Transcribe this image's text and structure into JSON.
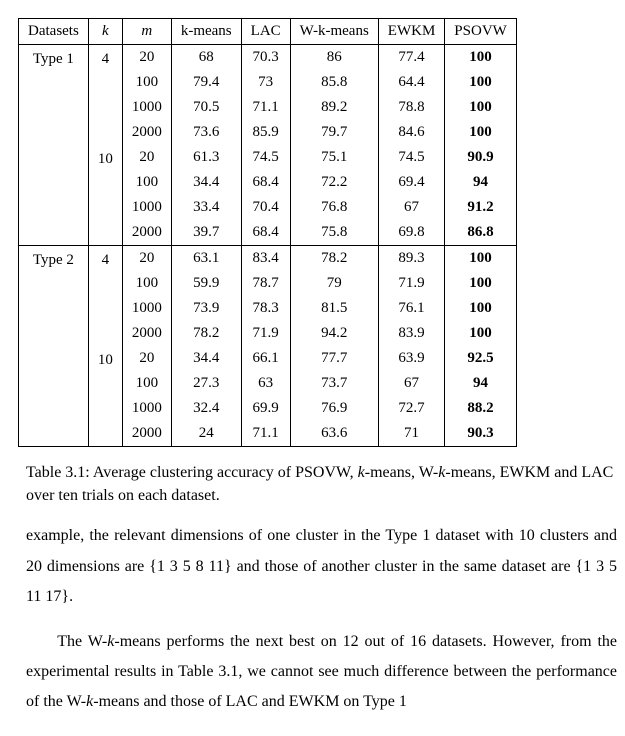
{
  "table": {
    "headers": [
      "Datasets",
      "k",
      "m",
      "k-means",
      "LAC",
      "W-k-means",
      "EWKM",
      "PSOVW"
    ],
    "groups": [
      {
        "dataset": "Type 1",
        "k_blocks": [
          {
            "k": 4,
            "rows": [
              {
                "m": 20,
                "kmeans": "68",
                "lac": "70.3",
                "wk": "86",
                "ewkm": "77.4",
                "psovw": "100"
              },
              {
                "m": 100,
                "kmeans": "79.4",
                "lac": "73",
                "wk": "85.8",
                "ewkm": "64.4",
                "psovw": "100"
              },
              {
                "m": 1000,
                "kmeans": "70.5",
                "lac": "71.1",
                "wk": "89.2",
                "ewkm": "78.8",
                "psovw": "100"
              },
              {
                "m": 2000,
                "kmeans": "73.6",
                "lac": "85.9",
                "wk": "79.7",
                "ewkm": "84.6",
                "psovw": "100"
              }
            ]
          },
          {
            "k": 10,
            "rows": [
              {
                "m": 20,
                "kmeans": "61.3",
                "lac": "74.5",
                "wk": "75.1",
                "ewkm": "74.5",
                "psovw": "90.9"
              },
              {
                "m": 100,
                "kmeans": "34.4",
                "lac": "68.4",
                "wk": "72.2",
                "ewkm": "69.4",
                "psovw": "94"
              },
              {
                "m": 1000,
                "kmeans": "33.4",
                "lac": "70.4",
                "wk": "76.8",
                "ewkm": "67",
                "psovw": "91.2"
              },
              {
                "m": 2000,
                "kmeans": "39.7",
                "lac": "68.4",
                "wk": "75.8",
                "ewkm": "69.8",
                "psovw": "86.8"
              }
            ]
          }
        ]
      },
      {
        "dataset": "Type 2",
        "k_blocks": [
          {
            "k": 4,
            "rows": [
              {
                "m": 20,
                "kmeans": "63.1",
                "lac": "83.4",
                "wk": "78.2",
                "ewkm": "89.3",
                "psovw": "100"
              },
              {
                "m": 100,
                "kmeans": "59.9",
                "lac": "78.7",
                "wk": "79",
                "ewkm": "71.9",
                "psovw": "100"
              },
              {
                "m": 1000,
                "kmeans": "73.9",
                "lac": "78.3",
                "wk": "81.5",
                "ewkm": "76.1",
                "psovw": "100"
              },
              {
                "m": 2000,
                "kmeans": "78.2",
                "lac": "71.9",
                "wk": "94.2",
                "ewkm": "83.9",
                "psovw": "100"
              }
            ]
          },
          {
            "k": 10,
            "rows": [
              {
                "m": 20,
                "kmeans": "34.4",
                "lac": "66.1",
                "wk": "77.7",
                "ewkm": "63.9",
                "psovw": "92.5"
              },
              {
                "m": 100,
                "kmeans": "27.3",
                "lac": "63",
                "wk": "73.7",
                "ewkm": "67",
                "psovw": "94"
              },
              {
                "m": 1000,
                "kmeans": "32.4",
                "lac": "69.9",
                "wk": "76.9",
                "ewkm": "72.7",
                "psovw": "88.2"
              },
              {
                "m": 2000,
                "kmeans": "24",
                "lac": "71.1",
                "wk": "63.6",
                "ewkm": "71",
                "psovw": "90.3"
              }
            ]
          }
        ]
      }
    ]
  },
  "caption_pre": "Table 3.1: Average clustering accuracy of PSOVW, ",
  "caption_mid1": "k",
  "caption_mid2": "-means, W-",
  "caption_mid3": "k",
  "caption_post": "-means, EWKM and LAC over ten trials on each dataset.",
  "para1_a": "example, the relevant dimensions of one cluster in the Type 1 dataset with 10 clusters and 20 dimensions are {1 3 5 8 11} and those of another cluster in the same dataset are {1 3 5 11 17}.",
  "para2_pre": "The W-",
  "para2_k1": "k",
  "para2_mid": "-means performs the next best on 12 out of 16 datasets. However, from the experimental results in Table 3.1, we cannot see much difference between the performance of the W-",
  "para2_k2": "k",
  "para2_post": "-means and those of LAC and EWKM on Type 1"
}
